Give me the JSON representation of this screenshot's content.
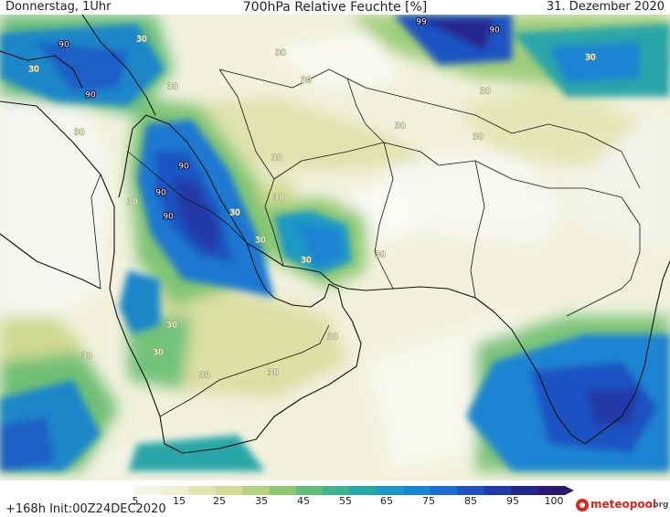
{
  "header": {
    "left": "Donnerstag, 1Uhr",
    "center": "700hPa Relative Feuchte [%]",
    "right": "31. Dezember 2020"
  },
  "footer": {
    "init": "+168h  Init:00Z24DEC2020",
    "logo_text": "meteopool",
    "logo_ext": ".org"
  },
  "colorbar": {
    "ticks": [
      "5",
      "15",
      "25",
      "35",
      "45",
      "55",
      "65",
      "75",
      "85",
      "95",
      "100"
    ],
    "colors": [
      "#ffffff",
      "#f4f4e8",
      "#efefcf",
      "#e2e5b2",
      "#d0dc95",
      "#b3d37f",
      "#8ec972",
      "#64bd79",
      "#3fb290",
      "#2ba6a8",
      "#1e98c4",
      "#1a84d2",
      "#1d6cd1",
      "#1f53c2",
      "#213ba8",
      "#25268c",
      "#2b1872"
    ]
  },
  "map": {
    "contour_labels": [
      {
        "text": "99",
        "color": "dark"
      },
      {
        "text": "90",
        "color": "dark"
      },
      {
        "text": "90",
        "color": "dark"
      },
      {
        "text": "90",
        "color": "dark"
      },
      {
        "text": "90",
        "color": "dark"
      },
      {
        "text": "90",
        "color": "dark"
      },
      {
        "text": "90",
        "color": "dark"
      },
      {
        "text": "30",
        "color": "light"
      },
      {
        "text": "30",
        "color": "light"
      },
      {
        "text": "30",
        "color": "light"
      },
      {
        "text": "30",
        "color": "light"
      },
      {
        "text": "30",
        "color": "light"
      },
      {
        "text": "30",
        "color": "light"
      },
      {
        "text": "30",
        "color": "light"
      },
      {
        "text": "30",
        "color": "light"
      },
      {
        "text": "30",
        "color": "light"
      },
      {
        "text": "30",
        "color": "light"
      },
      {
        "text": "30",
        "color": "light"
      },
      {
        "text": "30",
        "color": "light"
      },
      {
        "text": "30",
        "color": "light"
      },
      {
        "text": "30",
        "color": "light"
      },
      {
        "text": "30",
        "color": "light"
      },
      {
        "text": "30",
        "color": "light"
      },
      {
        "text": "30",
        "color": "light"
      },
      {
        "text": "30",
        "color": "light"
      },
      {
        "text": "30",
        "color": "light"
      },
      {
        "text": "30",
        "color": "light"
      },
      {
        "text": "30",
        "color": "light"
      },
      {
        "text": "30",
        "color": "light"
      },
      {
        "text": "30",
        "color": "light"
      }
    ]
  }
}
